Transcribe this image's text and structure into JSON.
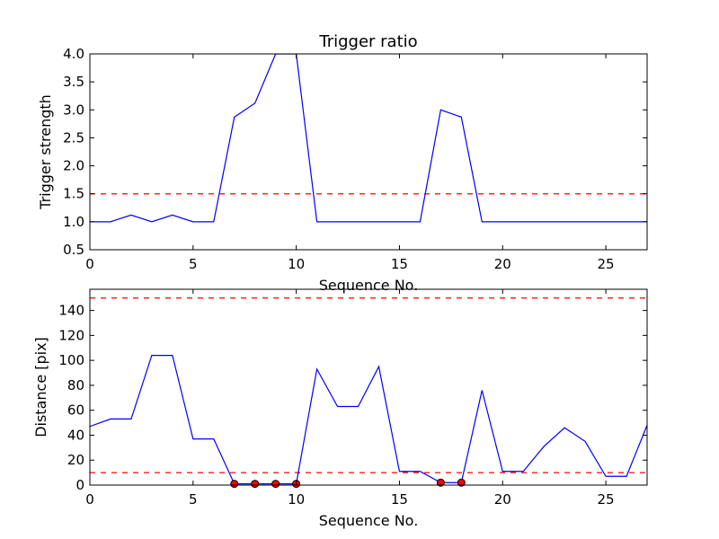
{
  "chart_data": [
    {
      "type": "line",
      "title": "Trigger ratio",
      "xlabel": "Sequence No.",
      "ylabel": "Trigger strength",
      "xlim": [
        0,
        27
      ],
      "ylim": [
        0.5,
        4.0
      ],
      "xticks": [
        0,
        5,
        10,
        15,
        20,
        25
      ],
      "xtick_labels": [
        "0",
        "5",
        "10",
        "15",
        "20",
        "25"
      ],
      "yticks": [
        0.5,
        1.0,
        1.5,
        2.0,
        2.5,
        3.0,
        3.5,
        4.0
      ],
      "ytick_labels": [
        "0.5",
        "1.0",
        "1.5",
        "2.0",
        "2.5",
        "3.0",
        "3.5",
        "4.0"
      ],
      "grid": false,
      "series": [
        {
          "color": "#0000ff",
          "x": [
            0,
            1,
            2,
            3,
            4,
            5,
            6,
            7,
            8,
            9,
            10,
            11,
            12,
            13,
            14,
            15,
            16,
            17,
            18,
            19,
            20,
            21,
            22,
            23,
            24,
            25,
            26,
            27
          ],
          "y": [
            1.0,
            1.0,
            1.12,
            1.0,
            1.12,
            1.0,
            1.0,
            2.87,
            3.12,
            4.0,
            4.0,
            1.0,
            1.0,
            1.0,
            1.0,
            1.0,
            1.0,
            3.0,
            2.87,
            1.0,
            1.0,
            1.0,
            1.0,
            1.0,
            1.0,
            1.0,
            1.0,
            1.0
          ]
        }
      ],
      "reference_lines": [
        {
          "y": 1.5,
          "color": "#ff0000",
          "style": "dashed"
        }
      ]
    },
    {
      "type": "line",
      "title": "",
      "xlabel": "Sequence No.",
      "ylabel": "Distance [pix]",
      "xlim": [
        0,
        27
      ],
      "ylim": [
        0,
        157
      ],
      "xticks": [
        0,
        5,
        10,
        15,
        20,
        25
      ],
      "xtick_labels": [
        "0",
        "5",
        "10",
        "15",
        "20",
        "25"
      ],
      "yticks": [
        0,
        20,
        40,
        60,
        80,
        100,
        120,
        140
      ],
      "ytick_labels": [
        "0",
        "20",
        "40",
        "60",
        "80",
        "100",
        "120",
        "140"
      ],
      "grid": false,
      "series": [
        {
          "color": "#0000ff",
          "x": [
            0,
            1,
            2,
            3,
            4,
            5,
            6,
            7,
            8,
            9,
            10,
            11,
            12,
            13,
            14,
            15,
            16,
            17,
            18,
            19,
            20,
            21,
            22,
            23,
            24,
            25,
            26,
            27
          ],
          "y": [
            47,
            53,
            53,
            104,
            104,
            37,
            37,
            1,
            1,
            1,
            1,
            93,
            63,
            63,
            95,
            11,
            11,
            2,
            2,
            76,
            11,
            11,
            31,
            46,
            35,
            7,
            7,
            48
          ]
        }
      ],
      "markers": {
        "color": "#ff0000",
        "x": [
          7,
          8,
          9,
          10,
          17,
          18
        ],
        "y": [
          1,
          1,
          1,
          1,
          2,
          2
        ]
      },
      "reference_lines": [
        {
          "y": 10,
          "color": "#ff0000",
          "style": "dashed"
        },
        {
          "y": 150,
          "color": "#ff0000",
          "style": "dashed"
        }
      ]
    }
  ]
}
